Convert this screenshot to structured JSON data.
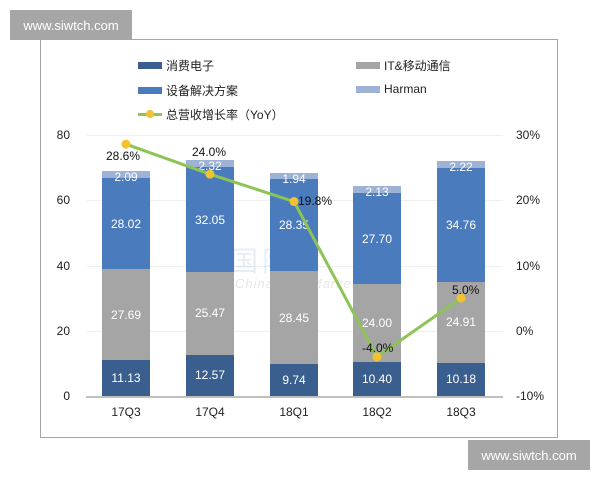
{
  "watermarks": {
    "top_left": "www.siwtch.com",
    "bottom_right": "www.siwtch.com"
  },
  "background_watermark": {
    "cn": "国际市",
    "en": "ChinaFlashMarket"
  },
  "legend": [
    {
      "label": "消费电子",
      "color": "#3a5f8f",
      "kind": "bar"
    },
    {
      "label": "IT&移动通信",
      "color": "#a5a5a5",
      "kind": "bar"
    },
    {
      "label": "设备解决方案",
      "color": "#4a7bbd",
      "kind": "bar"
    },
    {
      "label": "Harman",
      "color": "#9eb2d6",
      "kind": "bar"
    },
    {
      "label": "总营收增长率（YoY）",
      "color": "#8dc455",
      "marker": "#f2c230",
      "kind": "line"
    }
  ],
  "axes": {
    "left_ticks": [
      "80",
      "60",
      "40",
      "20",
      "0"
    ],
    "right_ticks": [
      "30%",
      "20%",
      "10%",
      "0%",
      "-10%"
    ]
  },
  "chart_data": {
    "type": "bar",
    "stacked": true,
    "title": "",
    "xlabel": "",
    "ylabel": "",
    "ylim": [
      0,
      80
    ],
    "y2lim": [
      -10,
      30
    ],
    "grid": true,
    "legend_position": "top",
    "categories": [
      "17Q3",
      "17Q4",
      "18Q1",
      "18Q2",
      "18Q3"
    ],
    "series": [
      {
        "name": "消费电子",
        "color": "#3a5f8f",
        "values": [
          11.13,
          12.57,
          9.74,
          10.4,
          10.18
        ]
      },
      {
        "name": "IT&移动通信",
        "color": "#a5a5a5",
        "values": [
          27.69,
          25.47,
          28.45,
          24.0,
          24.91
        ]
      },
      {
        "name": "设备解决方案",
        "color": "#4a7bbd",
        "values": [
          28.02,
          32.05,
          28.35,
          27.7,
          34.76
        ]
      },
      {
        "name": "Harman",
        "color": "#9eb2d6",
        "values": [
          2.09,
          2.32,
          1.94,
          2.13,
          2.22
        ]
      },
      {
        "name": "总营收增长率（YoY）",
        "type": "line",
        "axis": "right",
        "color": "#8dc455",
        "values": [
          28.6,
          24.0,
          19.8,
          -4.0,
          5.0
        ],
        "labels": [
          "28.6%",
          "24.0%",
          "19.8%",
          "-4.0%",
          "5.0%"
        ]
      }
    ],
    "bar_labels": [
      [
        "11.13",
        "12.57",
        "9.74",
        "10.40",
        "10.18"
      ],
      [
        "27.69",
        "25.47",
        "28.45",
        "24.00",
        "24.91"
      ],
      [
        "28.02",
        "32.05",
        "28.35",
        "27.70",
        "34.76"
      ],
      [
        "2.09",
        "2.32",
        "1.94",
        "2.13",
        "2.22"
      ]
    ]
  }
}
